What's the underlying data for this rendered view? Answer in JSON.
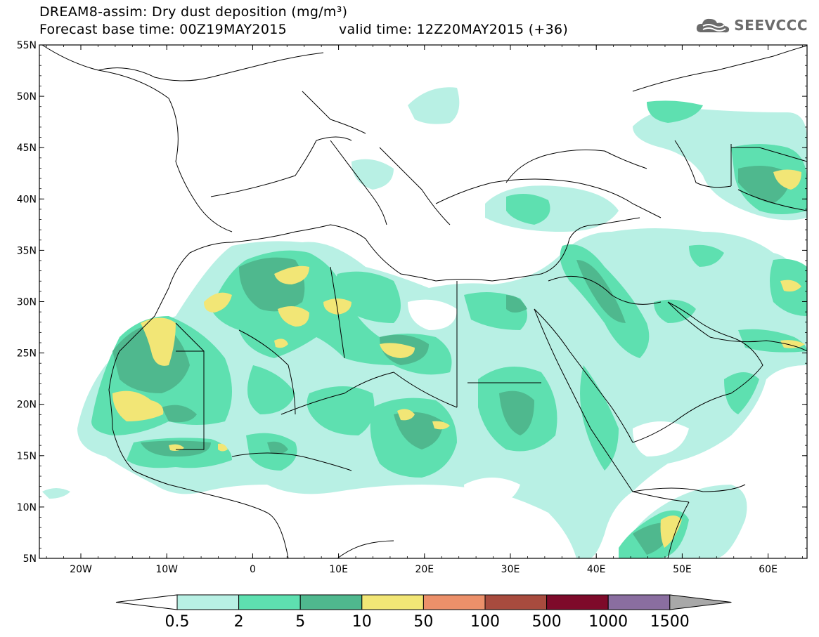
{
  "title": {
    "line1": "DREAM8-assim: Dry dust deposition (mg/m³)",
    "base_time": "Forecast base time: 00Z19MAY2015",
    "valid_time": "valid time: 12Z20MAY2015 (+36)"
  },
  "logo": {
    "text": "SEEVCCC",
    "icon": "cloud-logo-icon"
  },
  "map": {
    "lat_labels": [
      "55N",
      "50N",
      "45N",
      "40N",
      "35N",
      "30N",
      "25N",
      "20N",
      "15N",
      "10N",
      "5N"
    ],
    "lon_labels": [
      "20W",
      "10W",
      "0",
      "10E",
      "20E",
      "30E",
      "40E",
      "50E",
      "60E"
    ]
  },
  "legend": {
    "labels": [
      "0.5",
      "2",
      "5",
      "10",
      "50",
      "100",
      "500",
      "1000",
      "1500"
    ],
    "colors": [
      "#b8f0e4",
      "#5ee0b0",
      "#4fb88e",
      "#f2e676",
      "#ec906a",
      "#a84b3e",
      "#7e0a2a",
      "#8a6ea0",
      "#a8a8a8"
    ]
  },
  "palette": {
    "level1": "#b8f0e4",
    "level2": "#5ee0b0",
    "level3": "#4fb88e",
    "level4": "#f2e676"
  }
}
